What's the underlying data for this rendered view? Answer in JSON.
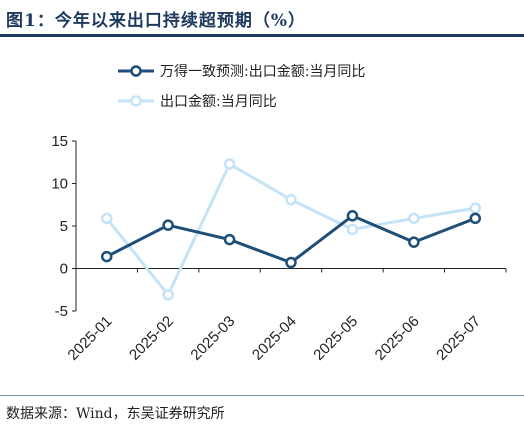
{
  "title": "图1：今年以来出口持续超预期（%）",
  "source": "数据来源：Wind，东吴证券研究所",
  "chart_data": {
    "type": "line",
    "categories": [
      "2025-01",
      "2025-02",
      "2025-03",
      "2025-04",
      "2025-05",
      "2025-06",
      "2025-07"
    ],
    "ylim": [
      -5,
      15
    ],
    "yticks": [
      "-5",
      "0",
      "5",
      "10",
      "15"
    ],
    "legend_position": "top",
    "grid": false,
    "series": [
      {
        "name": "万得一致预测:出口金额:当月同比",
        "color": "#1f4e79",
        "values": [
          1.4,
          5.1,
          3.4,
          0.7,
          6.2,
          3.1,
          5.9
        ]
      },
      {
        "name": "出口金额:当月同比",
        "color": "#c5e3f7",
        "values": [
          5.9,
          -3.1,
          12.3,
          8.1,
          4.6,
          5.9,
          7.1
        ]
      }
    ]
  }
}
